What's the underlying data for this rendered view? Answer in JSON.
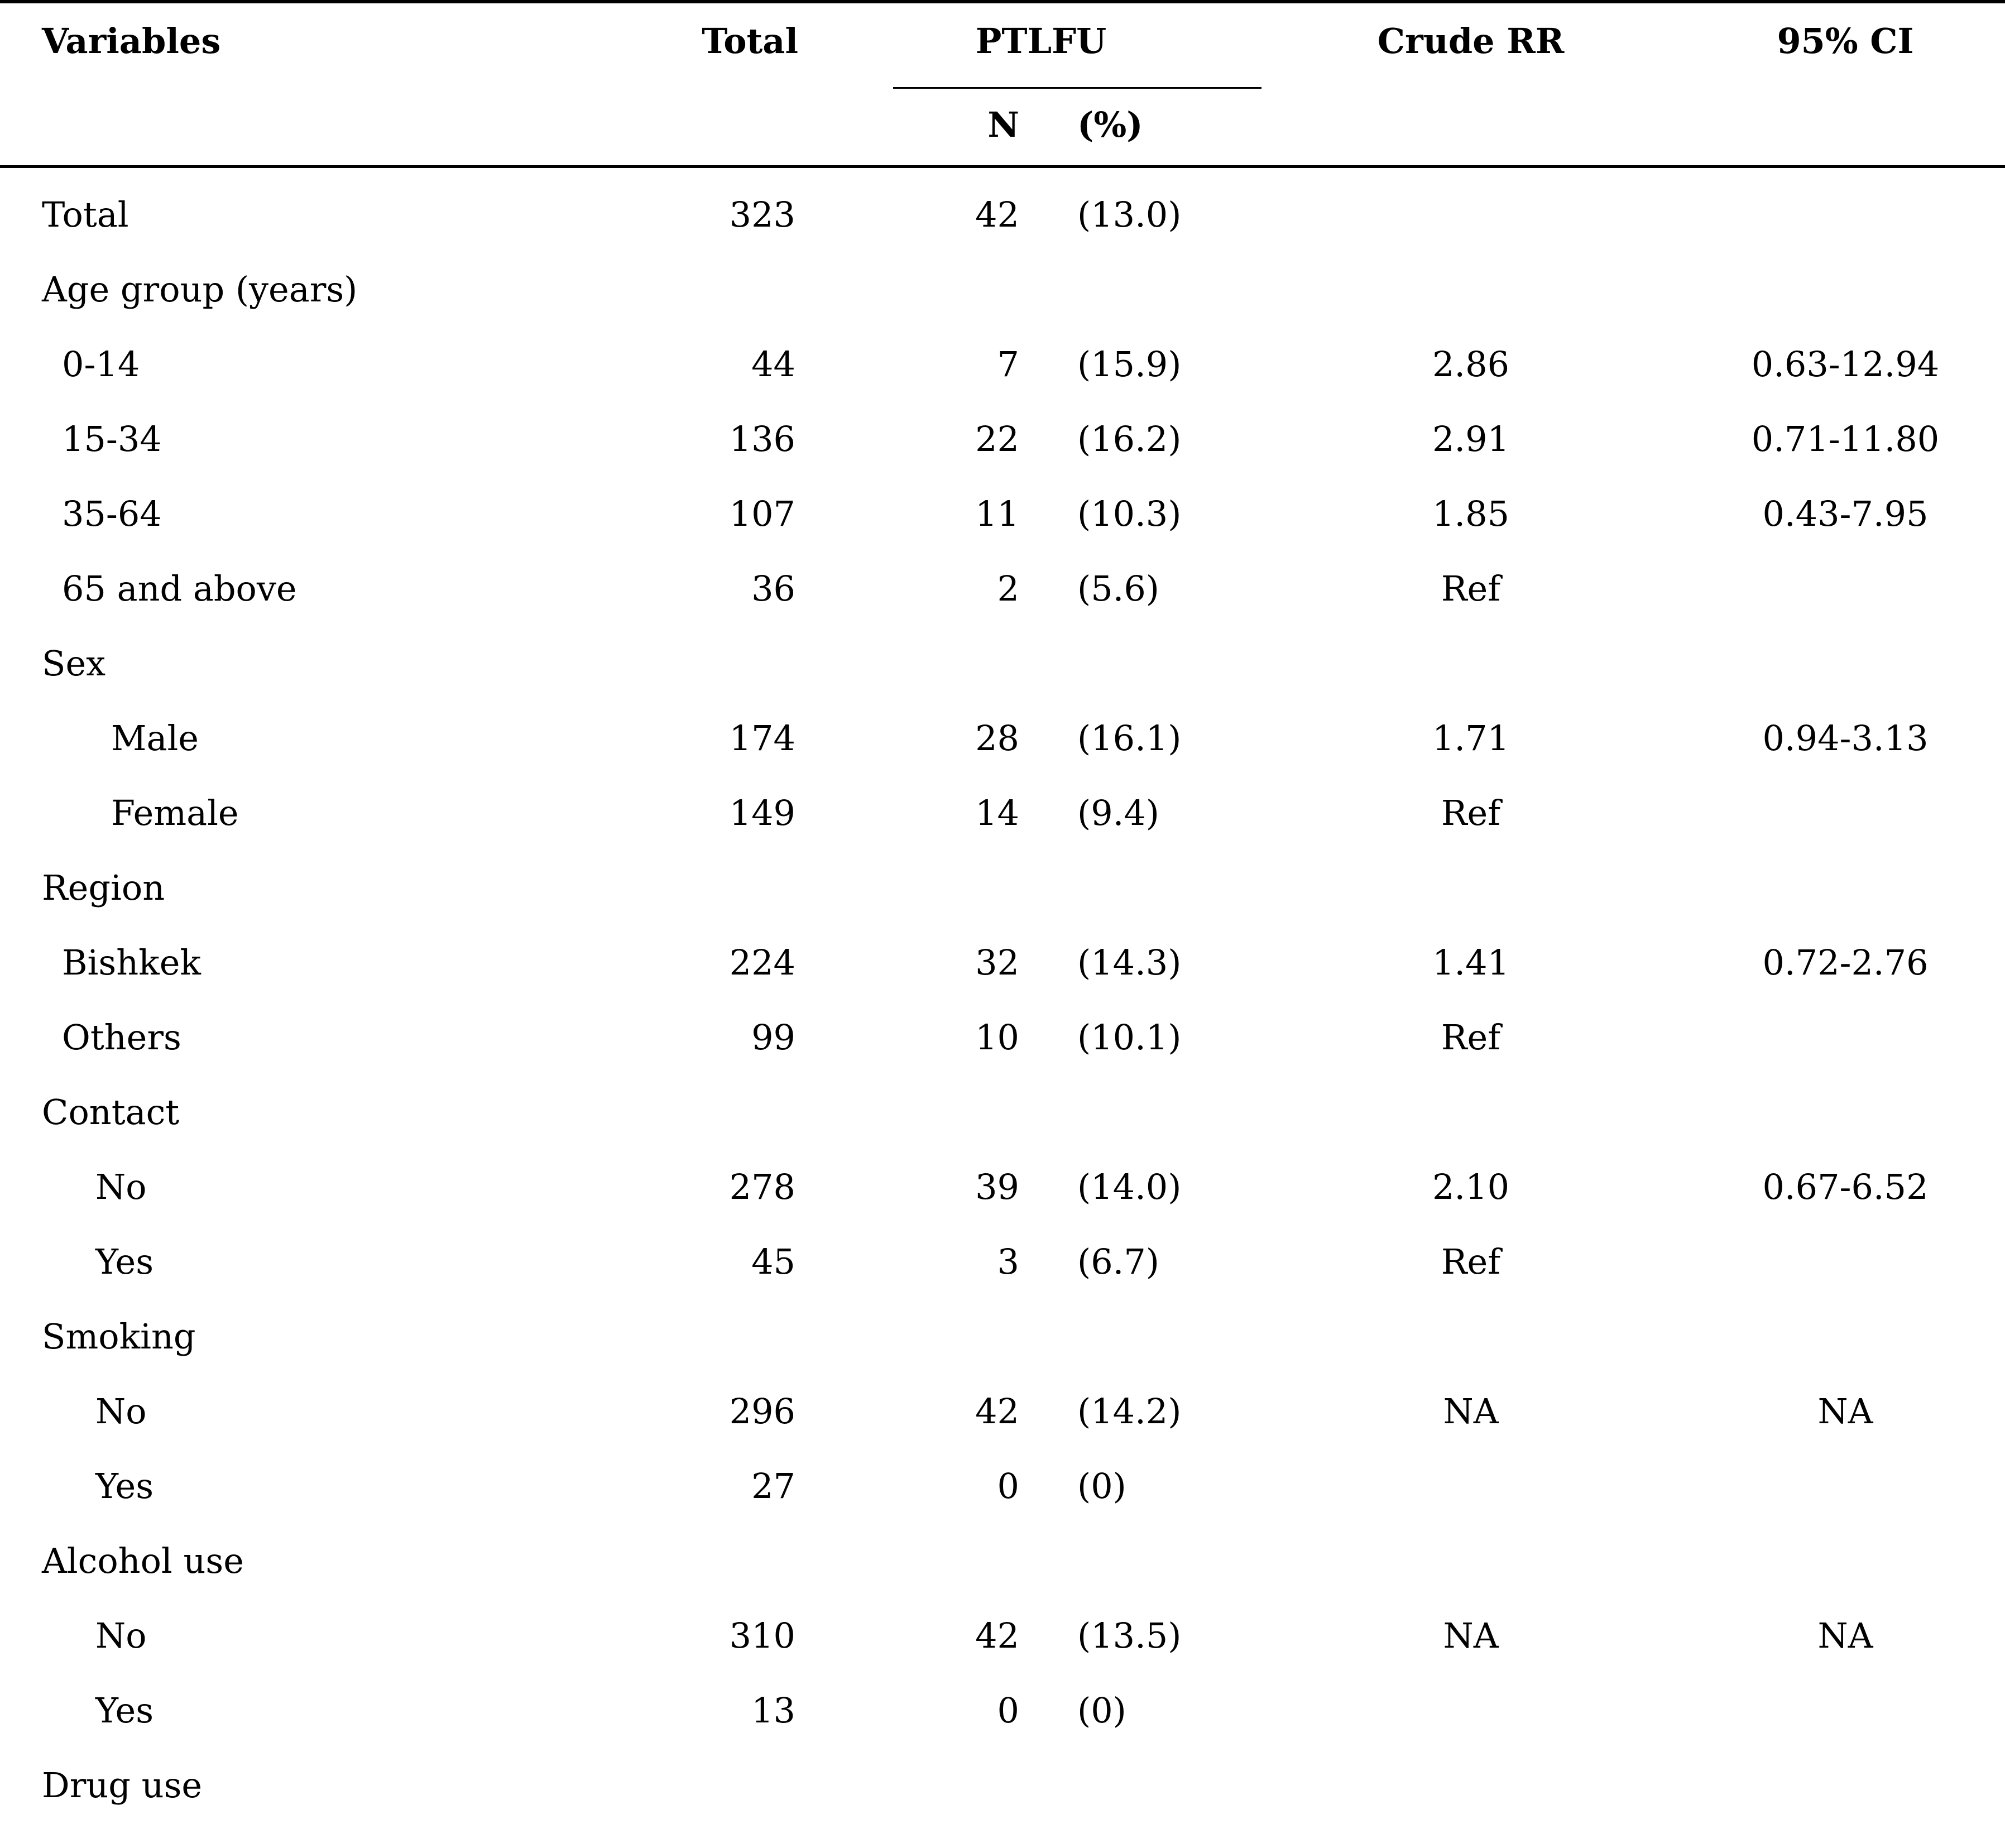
{
  "table": {
    "header": {
      "variables": "Variables",
      "total": "Total",
      "ptlfu": "PTLFU",
      "crude_rr": "Crude RR",
      "ci": "95% CI",
      "sub_n": "N",
      "sub_pct": "(%)"
    },
    "rows": [
      {
        "label": "Total",
        "total": "323",
        "n": "42",
        "pct": "(13.0)",
        "rr": "",
        "ci": "",
        "indent": 0
      },
      {
        "label": "Age group (years)",
        "total": "",
        "n": "",
        "pct": "",
        "rr": "",
        "ci": "",
        "indent": 0
      },
      {
        "label": "0-14",
        "total": "44",
        "n": "7",
        "pct": "(15.9)",
        "rr": "2.86",
        "ci": "0.63-12.94",
        "indent": 1
      },
      {
        "label": "15-34",
        "total": "136",
        "n": "22",
        "pct": "(16.2)",
        "rr": "2.91",
        "ci": "0.71-11.80",
        "indent": 1
      },
      {
        "label": "35-64",
        "total": "107",
        "n": "11",
        "pct": "(10.3)",
        "rr": "1.85",
        "ci": "0.43-7.95",
        "indent": 1
      },
      {
        "label": "65 and above",
        "total": "36",
        "n": "2",
        "pct": "(5.6)",
        "rr": "Ref",
        "ci": "",
        "indent": 1
      },
      {
        "label": "Sex",
        "total": "",
        "n": "",
        "pct": "",
        "rr": "",
        "ci": "",
        "indent": 0
      },
      {
        "label": "Male",
        "total": "174",
        "n": "28",
        "pct": "(16.1)",
        "rr": "1.71",
        "ci": "0.94-3.13",
        "indent": 3
      },
      {
        "label": "Female",
        "total": "149",
        "n": "14",
        "pct": "(9.4)",
        "rr": "Ref",
        "ci": "",
        "indent": 3
      },
      {
        "label": "Region",
        "total": "",
        "n": "",
        "pct": "",
        "rr": "",
        "ci": "",
        "indent": 0
      },
      {
        "label": "Bishkek",
        "total": "224",
        "n": "32",
        "pct": "(14.3)",
        "rr": "1.41",
        "ci": "0.72-2.76",
        "indent": 1
      },
      {
        "label": "Others",
        "total": "99",
        "n": "10",
        "pct": "(10.1)",
        "rr": "Ref",
        "ci": "",
        "indent": 1
      },
      {
        "label": "Contact",
        "total": "",
        "n": "",
        "pct": "",
        "rr": "",
        "ci": "",
        "indent": 0
      },
      {
        "label": "No",
        "total": "278",
        "n": "39",
        "pct": "(14.0)",
        "rr": "2.10",
        "ci": "0.67-6.52",
        "indent": 2
      },
      {
        "label": "Yes",
        "total": "45",
        "n": "3",
        "pct": "(6.7)",
        "rr": "Ref",
        "ci": "",
        "indent": 2
      },
      {
        "label": "Smoking",
        "total": "",
        "n": "",
        "pct": "",
        "rr": "",
        "ci": "",
        "indent": 0
      },
      {
        "label": "No",
        "total": "296",
        "n": "42",
        "pct": "(14.2)",
        "rr": "NA",
        "ci": "NA",
        "indent": 2
      },
      {
        "label": "Yes",
        "total": "27",
        "n": "0",
        "pct": "(0)",
        "rr": "",
        "ci": "",
        "indent": 2
      },
      {
        "label": "Alcohol use",
        "total": "",
        "n": "",
        "pct": "",
        "rr": "",
        "ci": "",
        "indent": 0
      },
      {
        "label": "No",
        "total": "310",
        "n": "42",
        "pct": "(13.5)",
        "rr": "NA",
        "ci": "NA",
        "indent": 2
      },
      {
        "label": "Yes",
        "total": "13",
        "n": "0",
        "pct": "(0)",
        "rr": "",
        "ci": "",
        "indent": 2
      },
      {
        "label": "Drug use",
        "total": "",
        "n": "",
        "pct": "",
        "rr": "",
        "ci": "",
        "indent": 0
      }
    ]
  }
}
